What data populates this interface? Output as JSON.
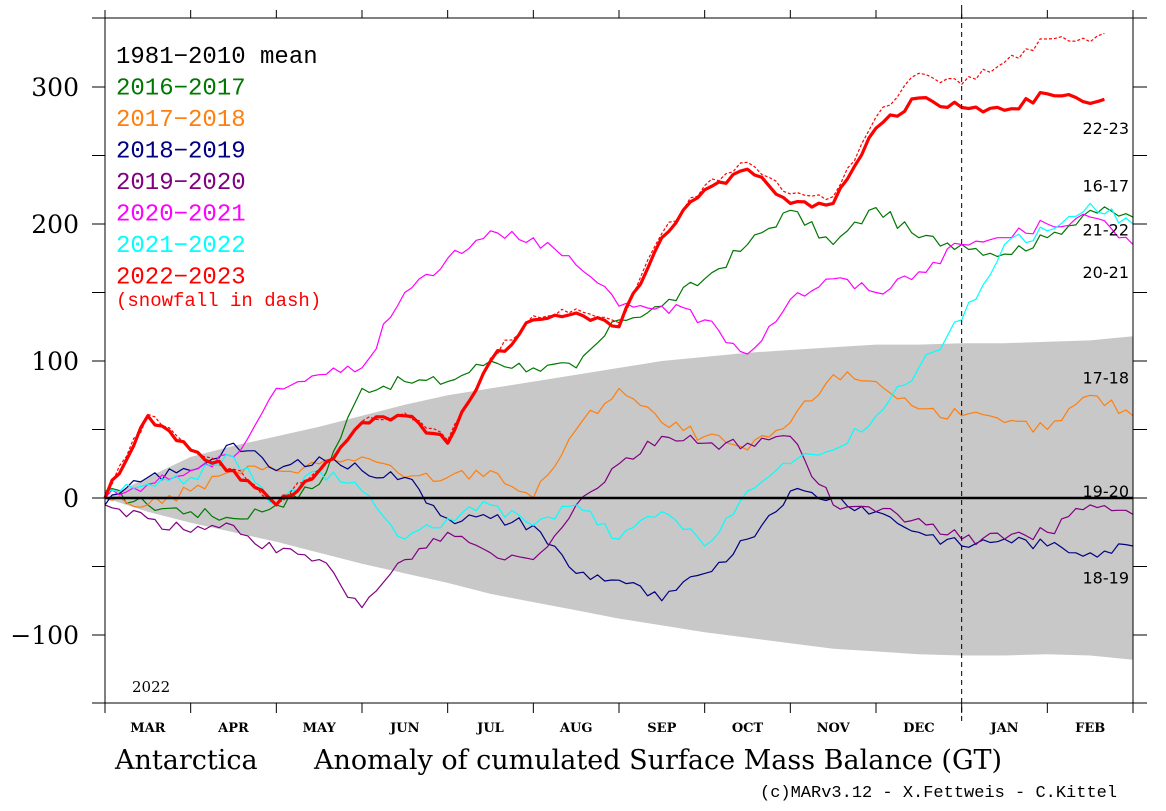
{
  "chart_data": {
    "type": "line",
    "title": "Anomaly of cumulated Surface Mass Balance (GT)",
    "region": "Antarctica",
    "credit": "(c)MARv3.12 - X.Fettweis - C.Kittel",
    "year_label": "2022",
    "xlabel": "",
    "ylabel": "",
    "ylim": [
      -150,
      350
    ],
    "yticks": [
      -100,
      0,
      100,
      300,
      200
    ],
    "ytick_labels": [
      {
        "value": 300,
        "label": "300"
      },
      {
        "value": 200,
        "label": "200"
      },
      {
        "value": 100,
        "label": "100"
      },
      {
        "value": 0,
        "label": "0"
      },
      {
        "value": -100,
        "label": "-100"
      }
    ],
    "yminor_ticks": [
      250,
      150,
      50,
      -50
    ],
    "months": [
      "MAR",
      "APR",
      "MAY",
      "JUN",
      "JUL",
      "AUG",
      "SEP",
      "OCT",
      "NOV",
      "DEC",
      "JAN",
      "FEB"
    ],
    "x_points_per_year": 25,
    "x_range_months": [
      0,
      12
    ],
    "year_boundary_month_index": 10,
    "legend": [
      {
        "label": "1981-2010 mean",
        "color": "#000000"
      },
      {
        "label": "2016-2017",
        "color": "#007800"
      },
      {
        "label": "2017-2018",
        "color": "#ff7f0e"
      },
      {
        "label": "2018-2019",
        "color": "#000080"
      },
      {
        "label": "2019-2020",
        "color": "#800080"
      },
      {
        "label": "2020-2021",
        "color": "#ff00ff"
      },
      {
        "label": "2021-2022",
        "color": "#00ffff"
      },
      {
        "label": "2022-2023",
        "color": "#ff0000"
      }
    ],
    "legend_note": "(snowfall in dash)",
    "legend_position": "top-left",
    "envelope": {
      "color": "#c8c8c8",
      "upper": [
        0,
        15,
        30,
        38,
        45,
        52,
        60,
        68,
        75,
        80,
        85,
        90,
        95,
        100,
        103,
        106,
        108,
        110,
        112,
        112,
        113,
        113,
        114,
        115,
        118
      ],
      "lower": [
        0,
        -10,
        -18,
        -25,
        -32,
        -40,
        -48,
        -55,
        -62,
        -70,
        -76,
        -82,
        -88,
        -93,
        -98,
        -102,
        -106,
        -110,
        -112,
        -114,
        -115,
        -115,
        -114,
        -115,
        -118
      ]
    },
    "mean_line": {
      "label": "1981-2010 mean",
      "value": 0,
      "color": "#000000"
    },
    "series": [
      {
        "name": "2016-2017",
        "short": "16-17",
        "color": "#007800",
        "values": [
          5,
          -5,
          -10,
          -15,
          -5,
          10,
          80,
          85,
          85,
          100,
          95,
          95,
          130,
          140,
          160,
          185,
          210,
          185,
          212,
          190,
          185,
          178,
          190,
          210,
          205
        ]
      },
      {
        "name": "2017-2018",
        "short": "17-18",
        "color": "#ff7f0e",
        "values": [
          0,
          -5,
          5,
          20,
          20,
          25,
          30,
          15,
          15,
          20,
          0,
          50,
          80,
          55,
          45,
          35,
          55,
          90,
          85,
          65,
          60,
          55,
          50,
          75,
          60
        ]
      },
      {
        "name": "2018-2019",
        "short": "18-19",
        "color": "#000080",
        "values": [
          -5,
          15,
          20,
          40,
          20,
          30,
          20,
          15,
          -15,
          -15,
          -20,
          -55,
          -60,
          -75,
          -55,
          -30,
          5,
          0,
          -10,
          -25,
          -35,
          -30,
          -35,
          -40,
          -35
        ]
      },
      {
        "name": "2019-2020",
        "short": "19-20",
        "color": "#800080",
        "values": [
          -5,
          -15,
          -25,
          -20,
          -40,
          -45,
          -80,
          -45,
          -25,
          -40,
          -45,
          -5,
          25,
          45,
          40,
          40,
          45,
          -5,
          -10,
          -15,
          -30,
          -30,
          -25,
          -5,
          -12
        ]
      },
      {
        "name": "2020-2021",
        "short": "20-21",
        "color": "#ff00ff",
        "values": [
          0,
          10,
          20,
          30,
          80,
          90,
          95,
          150,
          175,
          195,
          190,
          170,
          140,
          140,
          130,
          105,
          145,
          160,
          150,
          165,
          185,
          190,
          200,
          205,
          185
        ]
      },
      {
        "name": "2021-2022",
        "short": "21-22",
        "color": "#00ffff",
        "values": [
          5,
          10,
          15,
          30,
          -5,
          20,
          5,
          -30,
          -15,
          -5,
          -20,
          -5,
          -30,
          -10,
          -35,
          5,
          25,
          35,
          60,
          95,
          130,
          185,
          195,
          215,
          200
        ]
      },
      {
        "name": "2022-2023",
        "short": "22-23",
        "color": "#ff0000",
        "bold": true,
        "values": [
          0,
          60,
          35,
          20,
          -5,
          20,
          55,
          60,
          40,
          100,
          130,
          135,
          125,
          190,
          225,
          240,
          215,
          215,
          270,
          292,
          285,
          283,
          295,
          288,
          298
        ],
        "points": 24
      },
      {
        "name": "2022-2023 snowfall",
        "short": "",
        "color": "#ff0000",
        "dashed": true,
        "values": [
          0,
          61,
          36,
          21,
          -4,
          21,
          56,
          62,
          42,
          102,
          133,
          138,
          128,
          193,
          228,
          245,
          222,
          220,
          278,
          310,
          302,
          318,
          335,
          333,
          348
        ],
        "points": 24
      }
    ],
    "end_labels": [
      {
        "text": "22-23",
        "value": 270
      },
      {
        "text": "16-17",
        "value": 228
      },
      {
        "text": "21-22",
        "value": 196
      },
      {
        "text": "20-21",
        "value": 165
      },
      {
        "text": "17-18",
        "value": 88
      },
      {
        "text": "19-20",
        "value": 5
      },
      {
        "text": "18-19",
        "value": -58
      }
    ],
    "grid": false
  }
}
